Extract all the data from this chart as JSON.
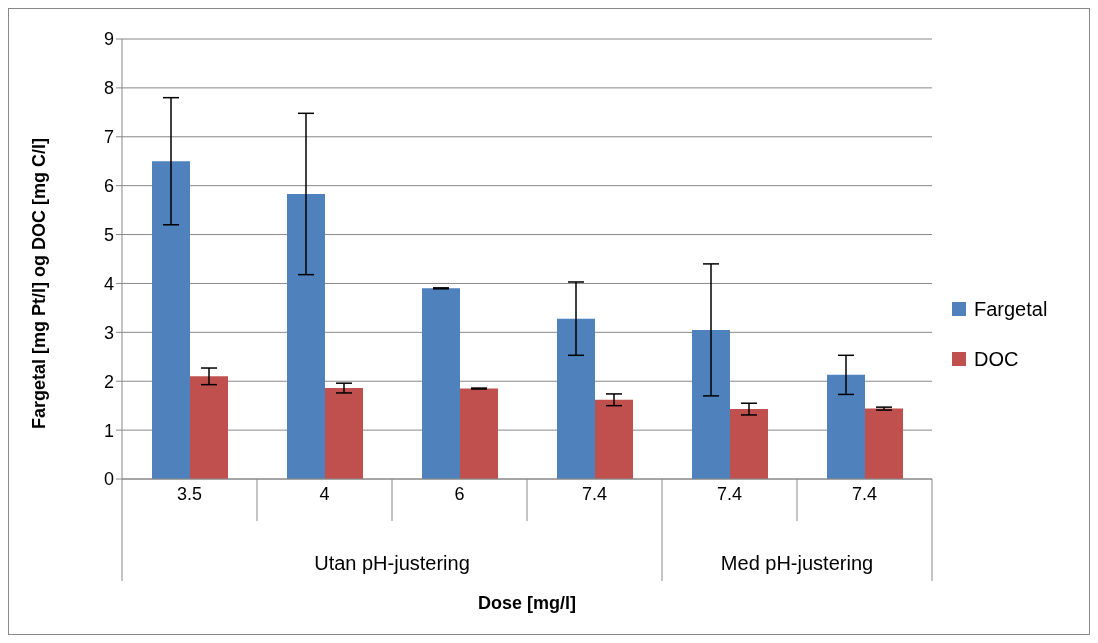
{
  "chart_data": {
    "type": "bar",
    "xlabel": "Dose [mg/l]",
    "ylabel": "Fargetal [mg Pt/l] og DOC [mg C/l]",
    "categories": [
      "3.5",
      "4",
      "6",
      "7.4",
      "7.4",
      "7.4"
    ],
    "series": [
      {
        "name": "Fargetal",
        "color": "#4f81bd",
        "values": [
          6.5,
          5.83,
          3.9,
          3.28,
          3.05,
          2.13
        ],
        "errors": [
          1.3,
          1.65,
          0.01,
          0.75,
          1.35,
          0.4
        ]
      },
      {
        "name": "DOC",
        "color": "#c0504d",
        "values": [
          2.1,
          1.86,
          1.85,
          1.62,
          1.43,
          1.44
        ],
        "errors": [
          0.17,
          0.1,
          0.01,
          0.12,
          0.12,
          0.03
        ]
      }
    ],
    "annotations": [
      "Utan pH-justering",
      "Med pH-justering"
    ],
    "ylim": [
      0,
      9
    ],
    "yticks": [
      0,
      1,
      2,
      3,
      4,
      5,
      6,
      7,
      8,
      9
    ],
    "grid": "y",
    "legend": "right"
  }
}
